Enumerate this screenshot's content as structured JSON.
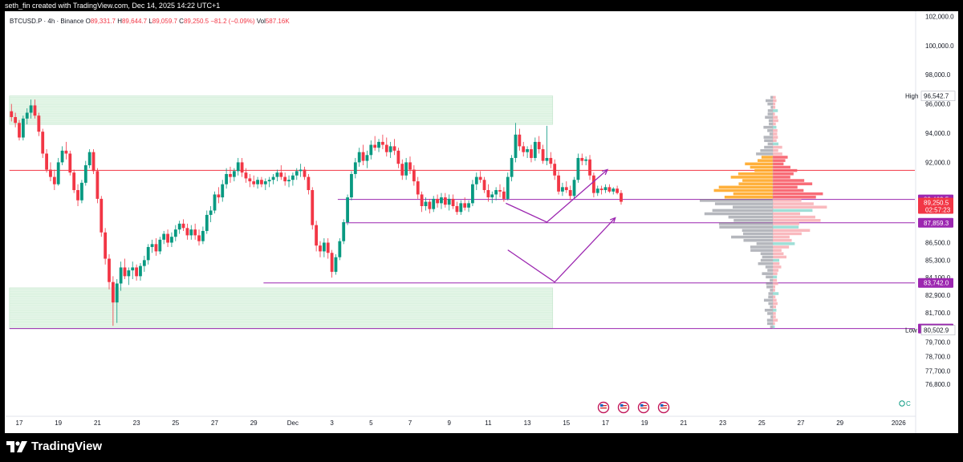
{
  "header": {
    "attribution": "seth_fin created with TradingView.com, Dec 14, 2025 14:22 UTC+1"
  },
  "legend": {
    "symbol": "BTCUSD.P · 4h · Binance",
    "o_label": "O",
    "o": "89,331.7",
    "h_label": "H",
    "h": "89,644.7",
    "l_label": "L",
    "l": "89,059.7",
    "c_label": "C",
    "c": "89,250.5",
    "change": "−81.2 (−0.09%)",
    "vol_label": "Vol",
    "vol": "587.16K"
  },
  "brand": {
    "name": "TradingView"
  },
  "colors": {
    "up": "#089981",
    "down": "#f23645",
    "zone": "#b9e7c6",
    "purple": "#9c27b0",
    "resistance": "#f23645",
    "vp_up_hi": "#ffa726",
    "vp_dn_hi": "#f7525f",
    "vp_up": "#787b86",
    "vp_dn": "#f7a2a8"
  },
  "chart_data": {
    "type": "candlestick",
    "symbol": "BTCUSD.P",
    "interval": "4h",
    "exchange": "Binance",
    "y_axis_ticks": [
      "102,000.0",
      "100,000.0",
      "98,000.0",
      "96,000.0",
      "94,000.0",
      "92,000.0",
      "86,500.0",
      "85,300.0",
      "84,100.0",
      "82,900.0",
      "81,700.0",
      "79,700.0",
      "78,700.0",
      "77,700.0",
      "76,800.0"
    ],
    "x_axis_ticks": [
      {
        "label": "17",
        "day": 0
      },
      {
        "label": "19",
        "day": 2
      },
      {
        "label": "21",
        "day": 4
      },
      {
        "label": "23",
        "day": 6
      },
      {
        "label": "25",
        "day": 8
      },
      {
        "label": "27",
        "day": 10
      },
      {
        "label": "29",
        "day": 12
      },
      {
        "label": "Dec",
        "day": 14
      },
      {
        "label": "3",
        "day": 16
      },
      {
        "label": "5",
        "day": 18
      },
      {
        "label": "7",
        "day": 20
      },
      {
        "label": "9",
        "day": 22
      },
      {
        "label": "11",
        "day": 24
      },
      {
        "label": "13",
        "day": 26
      },
      {
        "label": "15",
        "day": 28
      },
      {
        "label": "17",
        "day": 30
      },
      {
        "label": "19",
        "day": 32
      },
      {
        "label": "21",
        "day": 34
      },
      {
        "label": "23",
        "day": 36
      },
      {
        "label": "25",
        "day": 38
      },
      {
        "label": "27",
        "day": 40
      },
      {
        "label": "29",
        "day": 42
      },
      {
        "label": "2026",
        "day": 45
      }
    ],
    "price_badges": [
      {
        "label": "High",
        "value": "96,542.7",
        "price": 96542.7,
        "style": "plain"
      },
      {
        "label": "",
        "value": "89,462.5",
        "price": 89462.5,
        "style": "purple"
      },
      {
        "label": "",
        "value": "89,250.5",
        "sub": "02:57:23",
        "price": 89250.5,
        "style": "red"
      },
      {
        "label": "",
        "value": "87,859.3",
        "price": 87859.3,
        "style": "purple"
      },
      {
        "label": "",
        "value": "83,742.0",
        "price": 83742.0,
        "style": "purple"
      },
      {
        "label": "",
        "value": "80,615.7",
        "price": 80615.7,
        "style": "purple"
      },
      {
        "label": "Low",
        "value": "80,502.9",
        "price": 80502.9,
        "style": "plain"
      }
    ],
    "zones": [
      {
        "from_day": -0.5,
        "to_day": 27.3,
        "low": 94600,
        "high": 96550
      },
      {
        "from_day": -0.5,
        "to_day": 27.3,
        "low": 80600,
        "high": 83400
      }
    ],
    "levels": [
      {
        "price": 91450,
        "from_day": -0.5,
        "color": "resistance"
      },
      {
        "price": 89462.5,
        "from_day": 16.3,
        "color": "purple"
      },
      {
        "price": 87859.3,
        "from_day": 16.7,
        "color": "purple"
      },
      {
        "price": 83742.0,
        "from_day": 12.5,
        "color": "purple"
      },
      {
        "price": 80615.7,
        "from_day": -0.5,
        "color": "purple"
      }
    ],
    "projections": [
      [
        [
          24.9,
          89200
        ],
        [
          27.0,
          87900
        ],
        [
          30.1,
          91500
        ]
      ],
      [
        [
          25.0,
          86000
        ],
        [
          27.4,
          83800
        ],
        [
          30.5,
          88200
        ]
      ]
    ],
    "volume_profile": {
      "low": 80600,
      "high": 96550,
      "poc_price": 89000,
      "value_area": [
        89500,
        92500
      ]
    },
    "candles": [
      [
        -0.4,
        95500,
        96000,
        94800,
        95100
      ],
      [
        -0.2,
        95100,
        95400,
        94400,
        94700
      ],
      [
        0.0,
        94700,
        94900,
        93500,
        93700
      ],
      [
        0.2,
        93700,
        95200,
        93500,
        95000
      ],
      [
        0.4,
        95000,
        95700,
        94600,
        95400
      ],
      [
        0.6,
        95400,
        96300,
        95000,
        95900
      ],
      [
        0.8,
        95900,
        96300,
        95000,
        95200
      ],
      [
        1.0,
        95200,
        95400,
        93800,
        94100
      ],
      [
        1.2,
        94100,
        94300,
        92300,
        92600
      ],
      [
        1.4,
        92600,
        92900,
        91300,
        91500
      ],
      [
        1.6,
        91500,
        92000,
        90700,
        91000
      ],
      [
        1.8,
        91000,
        91500,
        90100,
        90500
      ],
      [
        2.0,
        90500,
        92300,
        90400,
        92000
      ],
      [
        2.2,
        92000,
        93100,
        91800,
        92800
      ],
      [
        2.4,
        92800,
        93400,
        92200,
        92600
      ],
      [
        2.6,
        92600,
        92800,
        91100,
        91300
      ],
      [
        2.8,
        91300,
        91500,
        89900,
        90100
      ],
      [
        3.0,
        90100,
        90500,
        89000,
        89400
      ],
      [
        3.2,
        89400,
        90800,
        89200,
        90600
      ],
      [
        3.4,
        90600,
        92100,
        90400,
        91800
      ],
      [
        3.6,
        91800,
        92900,
        91600,
        92700
      ],
      [
        3.8,
        92700,
        92900,
        91200,
        91400
      ],
      [
        4.0,
        91400,
        91600,
        89200,
        89500
      ],
      [
        4.2,
        89500,
        89700,
        86900,
        87200
      ],
      [
        4.4,
        87200,
        87500,
        85000,
        85400
      ],
      [
        4.6,
        85400,
        85700,
        83300,
        83800
      ],
      [
        4.8,
        83800,
        84200,
        80800,
        82400
      ],
      [
        5.0,
        82400,
        84000,
        81000,
        83700
      ],
      [
        5.2,
        83700,
        85200,
        83200,
        84800
      ],
      [
        5.4,
        84800,
        85400,
        84000,
        84200
      ],
      [
        5.6,
        84200,
        84800,
        83600,
        84600
      ],
      [
        5.8,
        84600,
        85200,
        84000,
        84800
      ],
      [
        6.0,
        84800,
        85000,
        83900,
        84200
      ],
      [
        6.2,
        84200,
        85100,
        83900,
        84900
      ],
      [
        6.4,
        84900,
        85600,
        84500,
        85300
      ],
      [
        6.6,
        85300,
        86400,
        85000,
        86200
      ],
      [
        6.8,
        86200,
        86700,
        85800,
        86400
      ],
      [
        7.0,
        86400,
        86800,
        85600,
        85900
      ],
      [
        7.2,
        85900,
        86900,
        85700,
        86700
      ],
      [
        7.4,
        86700,
        87300,
        86400,
        87100
      ],
      [
        7.6,
        87100,
        87400,
        86200,
        86500
      ],
      [
        7.8,
        86500,
        87200,
        86200,
        86900
      ],
      [
        8.0,
        86900,
        87700,
        86600,
        87400
      ],
      [
        8.2,
        87400,
        88000,
        87100,
        87800
      ],
      [
        8.4,
        87800,
        88100,
        87300,
        87500
      ],
      [
        8.6,
        87500,
        87800,
        86700,
        87000
      ],
      [
        8.8,
        87000,
        87700,
        86700,
        87400
      ],
      [
        9.0,
        87400,
        87800,
        86700,
        87000
      ],
      [
        9.2,
        87000,
        87400,
        86300,
        86600
      ],
      [
        9.4,
        86600,
        87600,
        86400,
        87300
      ],
      [
        9.6,
        87300,
        88700,
        87100,
        88400
      ],
      [
        9.8,
        88400,
        89000,
        87900,
        88700
      ],
      [
        10.0,
        88700,
        90000,
        88500,
        89800
      ],
      [
        10.2,
        89800,
        90300,
        89200,
        89600
      ],
      [
        10.4,
        89600,
        90800,
        89300,
        90500
      ],
      [
        10.6,
        90500,
        91600,
        90200,
        91200
      ],
      [
        10.8,
        91200,
        91700,
        90600,
        91000
      ],
      [
        11.0,
        91000,
        91600,
        90700,
        91400
      ],
      [
        11.2,
        91400,
        92300,
        91100,
        92000
      ],
      [
        11.4,
        92000,
        92300,
        91000,
        91300
      ],
      [
        11.6,
        91300,
        91600,
        90600,
        90900
      ],
      [
        11.8,
        90900,
        91200,
        90300,
        90700
      ],
      [
        12.0,
        90700,
        91100,
        90300,
        90500
      ],
      [
        12.2,
        90500,
        91000,
        90200,
        90800
      ],
      [
        12.4,
        90800,
        91000,
        90300,
        90500
      ],
      [
        12.6,
        90500,
        90900,
        90100,
        90700
      ],
      [
        12.8,
        90700,
        91000,
        90300,
        90800
      ],
      [
        13.0,
        90800,
        91200,
        90500,
        91000
      ],
      [
        13.2,
        91000,
        91500,
        90700,
        91300
      ],
      [
        13.4,
        91300,
        91800,
        90800,
        91000
      ],
      [
        13.6,
        91000,
        91300,
        90400,
        90700
      ],
      [
        13.8,
        90700,
        91100,
        90300,
        90800
      ],
      [
        14.0,
        90800,
        91300,
        90400,
        91100
      ],
      [
        14.2,
        91100,
        91600,
        90800,
        91400
      ],
      [
        14.4,
        91400,
        91900,
        91000,
        91500
      ],
      [
        14.6,
        91500,
        91700,
        90800,
        91000
      ],
      [
        14.8,
        91000,
        91200,
        89800,
        90100
      ],
      [
        15.0,
        90100,
        90300,
        87400,
        87700
      ],
      [
        15.2,
        87700,
        88000,
        85900,
        86300
      ],
      [
        15.4,
        86300,
        86600,
        85500,
        85900
      ],
      [
        15.6,
        85900,
        86800,
        85500,
        86500
      ],
      [
        15.8,
        86500,
        86800,
        85400,
        85800
      ],
      [
        16.0,
        85800,
        86000,
        84100,
        84500
      ],
      [
        16.2,
        84500,
        85700,
        84300,
        85500
      ],
      [
        16.4,
        85500,
        86800,
        85300,
        86600
      ],
      [
        16.6,
        86600,
        88100,
        86400,
        87900
      ],
      [
        16.8,
        87900,
        89800,
        87700,
        89600
      ],
      [
        17.0,
        89600,
        91400,
        89400,
        91200
      ],
      [
        17.2,
        91200,
        92300,
        90900,
        92000
      ],
      [
        17.4,
        92000,
        93000,
        91700,
        92700
      ],
      [
        17.6,
        92700,
        93200,
        91800,
        92100
      ],
      [
        17.8,
        92100,
        92800,
        91600,
        92500
      ],
      [
        18.0,
        92500,
        93500,
        92200,
        93200
      ],
      [
        18.2,
        93200,
        93800,
        92800,
        93000
      ],
      [
        18.4,
        93000,
        93600,
        92700,
        93400
      ],
      [
        18.6,
        93400,
        93900,
        92900,
        93200
      ],
      [
        18.8,
        93200,
        93700,
        92400,
        92700
      ],
      [
        19.0,
        92700,
        93400,
        92300,
        93100
      ],
      [
        19.2,
        93100,
        93600,
        92500,
        92800
      ],
      [
        19.4,
        92800,
        93000,
        91600,
        91900
      ],
      [
        19.6,
        91900,
        92200,
        90800,
        91100
      ],
      [
        19.8,
        91100,
        92300,
        90800,
        92000
      ],
      [
        20.0,
        92000,
        92400,
        91200,
        91500
      ],
      [
        20.2,
        91500,
        91800,
        90400,
        90700
      ],
      [
        20.4,
        90700,
        91000,
        89500,
        89800
      ],
      [
        20.6,
        89800,
        90000,
        88600,
        89000
      ],
      [
        20.8,
        89000,
        89600,
        88700,
        89300
      ],
      [
        21.0,
        89300,
        89500,
        88500,
        88800
      ],
      [
        21.2,
        88800,
        89700,
        88600,
        89500
      ],
      [
        21.4,
        89500,
        89800,
        88900,
        89200
      ],
      [
        21.6,
        89200,
        89900,
        88800,
        89600
      ],
      [
        21.8,
        89600,
        89900,
        88900,
        89100
      ],
      [
        22.0,
        89100,
        89800,
        88700,
        89500
      ],
      [
        22.2,
        89500,
        89800,
        88800,
        89000
      ],
      [
        22.4,
        89000,
        89300,
        88400,
        88600
      ],
      [
        22.6,
        88600,
        89400,
        88400,
        89200
      ],
      [
        22.8,
        89200,
        89600,
        88700,
        88900
      ],
      [
        23.0,
        88900,
        89400,
        88600,
        89200
      ],
      [
        23.2,
        89200,
        90800,
        89000,
        90500
      ],
      [
        23.4,
        90500,
        91300,
        90100,
        91000
      ],
      [
        23.6,
        91000,
        91400,
        90600,
        90800
      ],
      [
        23.8,
        90800,
        91000,
        89900,
        90100
      ],
      [
        24.0,
        90100,
        90500,
        89300,
        89600
      ],
      [
        24.2,
        89600,
        90000,
        89200,
        89800
      ],
      [
        24.4,
        89800,
        90300,
        89400,
        90100
      ],
      [
        24.6,
        90100,
        90500,
        89600,
        90000
      ],
      [
        24.8,
        90000,
        90300,
        89300,
        89500
      ],
      [
        25.0,
        89500,
        91300,
        89400,
        91000
      ],
      [
        25.2,
        91000,
        92500,
        90700,
        92300
      ],
      [
        25.4,
        92300,
        94700,
        92000,
        93900
      ],
      [
        25.6,
        93900,
        94300,
        92800,
        93100
      ],
      [
        25.8,
        93100,
        93400,
        92400,
        92700
      ],
      [
        26.0,
        92700,
        93100,
        92300,
        92900
      ],
      [
        26.2,
        92900,
        93200,
        92000,
        92300
      ],
      [
        26.4,
        92300,
        93700,
        92100,
        93400
      ],
      [
        26.6,
        93400,
        93800,
        92600,
        92900
      ],
      [
        26.8,
        92900,
        93200,
        91900,
        92100
      ],
      [
        27.0,
        92100,
        94500,
        91800,
        92300
      ],
      [
        27.2,
        92300,
        92700,
        91600,
        91900
      ],
      [
        27.4,
        91900,
        92200,
        90800,
        91100
      ],
      [
        27.6,
        91100,
        91400,
        89800,
        90000
      ],
      [
        27.8,
        90000,
        90600,
        89700,
        90300
      ],
      [
        28.0,
        90300,
        90700,
        89900,
        90100
      ],
      [
        28.2,
        90100,
        90400,
        89400,
        89700
      ],
      [
        28.4,
        89700,
        91000,
        89500,
        90800
      ],
      [
        28.6,
        90800,
        92600,
        90600,
        92300
      ],
      [
        28.8,
        92300,
        92600,
        91800,
        92100
      ],
      [
        29.0,
        92100,
        92400,
        91800,
        92200
      ],
      [
        29.2,
        92200,
        92500,
        90800,
        91100
      ],
      [
        29.4,
        91100,
        91300,
        89600,
        89900
      ],
      [
        29.6,
        89900,
        90400,
        89700,
        90200
      ],
      [
        29.8,
        90200,
        90400,
        89800,
        90100
      ],
      [
        30.0,
        90100,
        90500,
        89900,
        90300
      ],
      [
        30.2,
        90300,
        90500,
        89900,
        90000
      ],
      [
        30.4,
        90000,
        90300,
        89800,
        90200
      ],
      [
        30.6,
        90200,
        90400,
        89800,
        89900
      ],
      [
        30.8,
        89900,
        90100,
        89100,
        89300
      ]
    ]
  }
}
